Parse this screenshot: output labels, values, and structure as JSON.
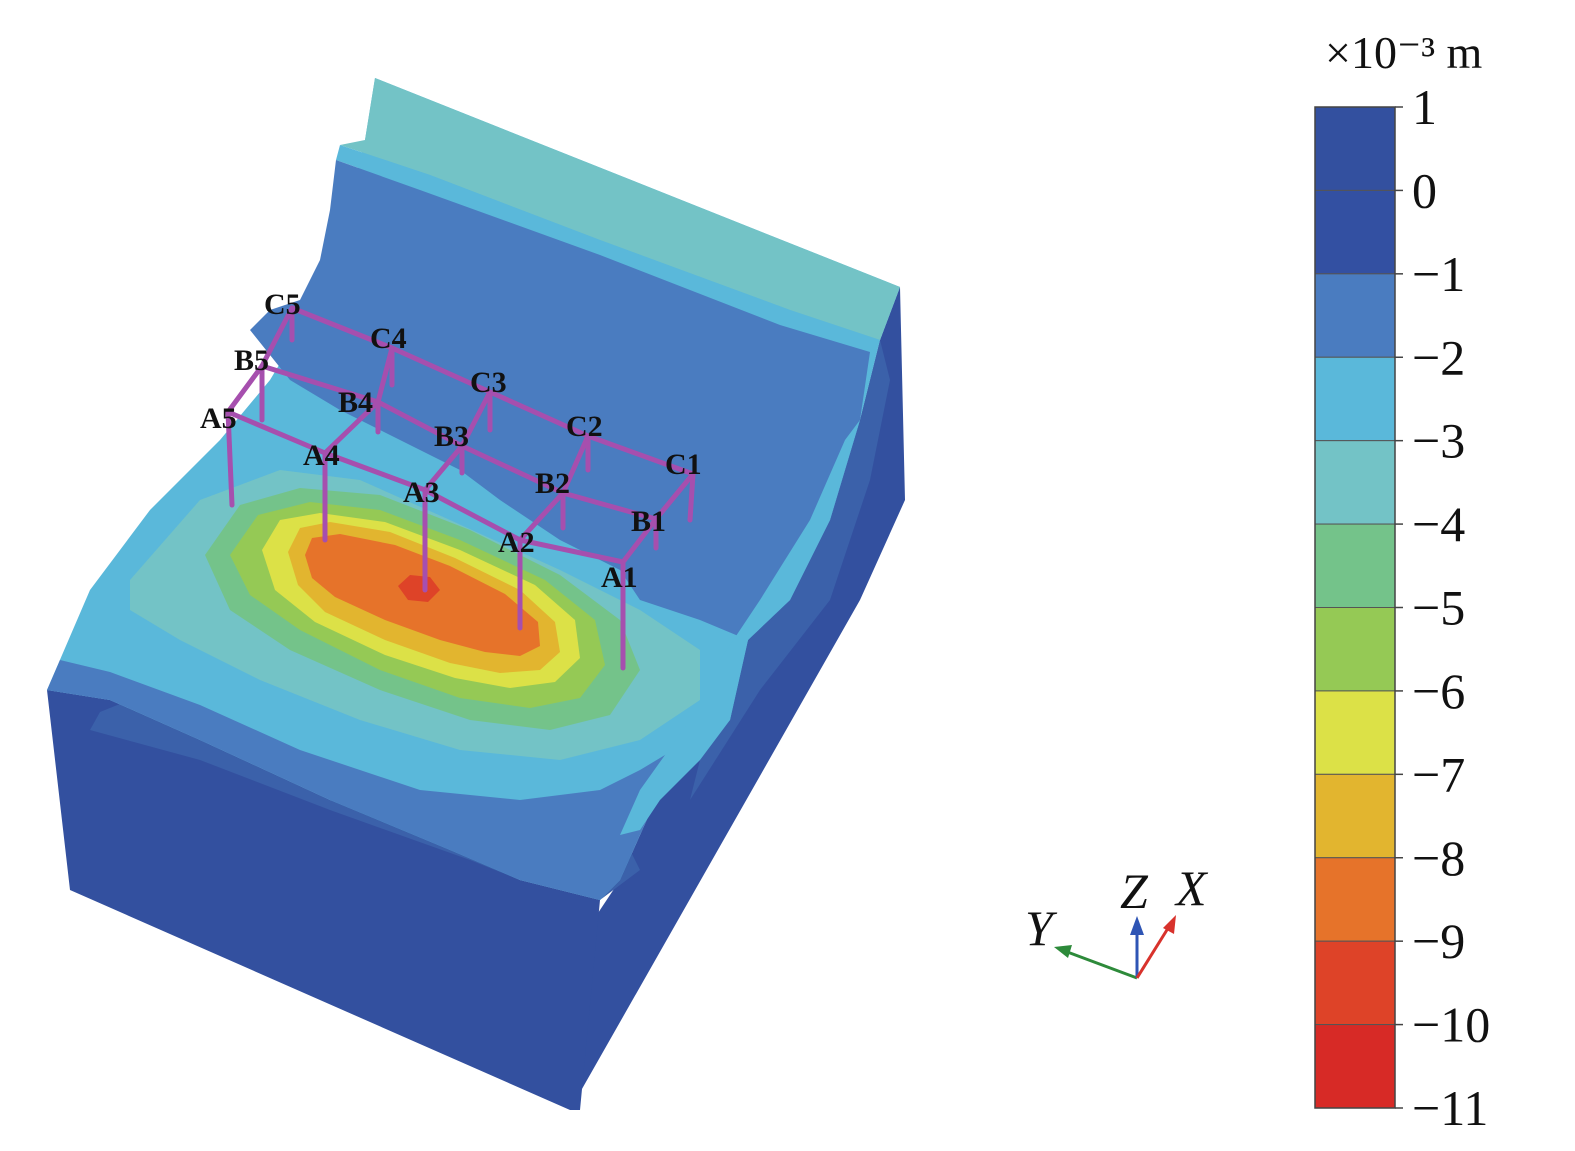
{
  "legend": {
    "unit": "×10⁻³ m",
    "ticks": [
      "1",
      "0",
      "−1",
      "−2",
      "−3",
      "−4",
      "−5",
      "−6",
      "−7",
      "−8",
      "−9",
      "−10",
      "−11"
    ],
    "colors": [
      "#33509f",
      "#3350a2",
      "#4a7cc0",
      "#5ab8da",
      "#73c3c6",
      "#74c38a",
      "#95c955",
      "#dce147",
      "#e2b52f",
      "#e6732a",
      "#de4328",
      "#d72a26"
    ]
  },
  "structure": {
    "color": "#a64fae",
    "columns": [
      {
        "label": "A1"
      },
      {
        "label": "A2"
      },
      {
        "label": "A3"
      },
      {
        "label": "A4"
      },
      {
        "label": "A5"
      },
      {
        "label": "B1"
      },
      {
        "label": "B2"
      },
      {
        "label": "B3"
      },
      {
        "label": "B4"
      },
      {
        "label": "B5"
      },
      {
        "label": "C1"
      },
      {
        "label": "C2"
      },
      {
        "label": "C3"
      },
      {
        "label": "C4"
      },
      {
        "label": "C5"
      }
    ]
  },
  "axes": {
    "x_label": "X",
    "y_label": "Y",
    "z_label": "Z",
    "x_color": "#d8322c",
    "y_color": "#2d8a3a",
    "z_color": "#2f55b5"
  }
}
